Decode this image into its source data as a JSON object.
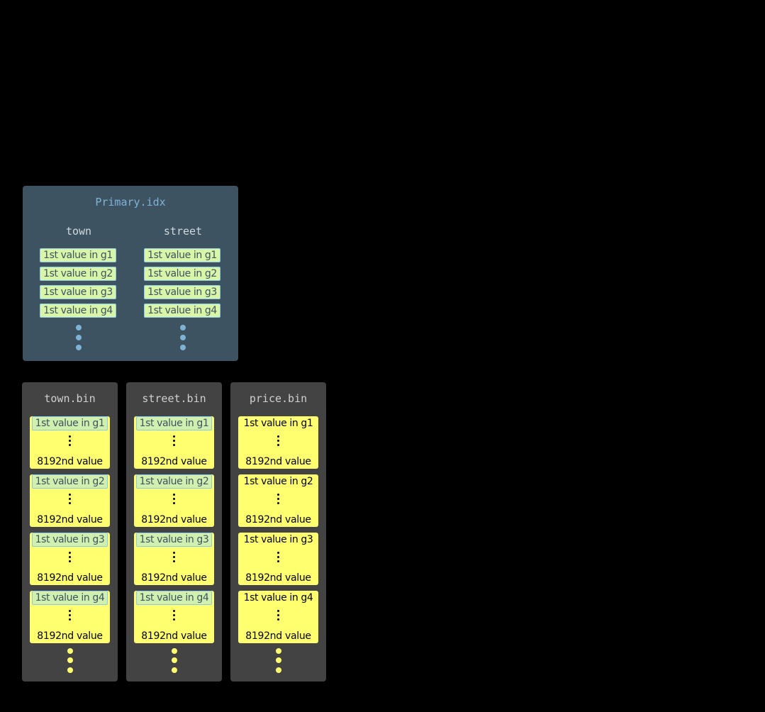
{
  "primary_index": {
    "title": "Primary.idx",
    "columns": [
      {
        "name": "town",
        "entries": [
          "1st value in g1",
          "1st value in g2",
          "1st value in g3",
          "1st value in g4"
        ]
      },
      {
        "name": "street",
        "entries": [
          "1st value in g1",
          "1st value in g2",
          "1st value in g3",
          "1st value in g4"
        ]
      }
    ]
  },
  "bin_files": [
    {
      "title": "town.bin",
      "indexed": true,
      "granules": [
        {
          "first": "1st value in g1",
          "last": "8192nd value"
        },
        {
          "first": "1st value in g2",
          "last": "8192nd value"
        },
        {
          "first": "1st value in g3",
          "last": "8192nd value"
        },
        {
          "first": "1st value in g4",
          "last": "8192nd value"
        }
      ]
    },
    {
      "title": "street.bin",
      "indexed": true,
      "granules": [
        {
          "first": "1st value in g1",
          "last": "8192nd value"
        },
        {
          "first": "1st value in g2",
          "last": "8192nd value"
        },
        {
          "first": "1st value in g3",
          "last": "8192nd value"
        },
        {
          "first": "1st value in g4",
          "last": "8192nd value"
        }
      ]
    },
    {
      "title": "price.bin",
      "indexed": false,
      "granules": [
        {
          "first": "1st value in g1",
          "last": "8192nd value"
        },
        {
          "first": "1st value in g2",
          "last": "8192nd value"
        },
        {
          "first": "1st value in g3",
          "last": "8192nd value"
        },
        {
          "first": "1st value in g4",
          "last": "8192nd value"
        }
      ]
    }
  ],
  "colors": {
    "index_bg": "#3d5361",
    "bin_bg": "#434343",
    "granule": "#ffff70",
    "index_entry": "#d8f5a8",
    "index_dots": "#7fb3d5",
    "bin_dots": "#ffff70"
  }
}
